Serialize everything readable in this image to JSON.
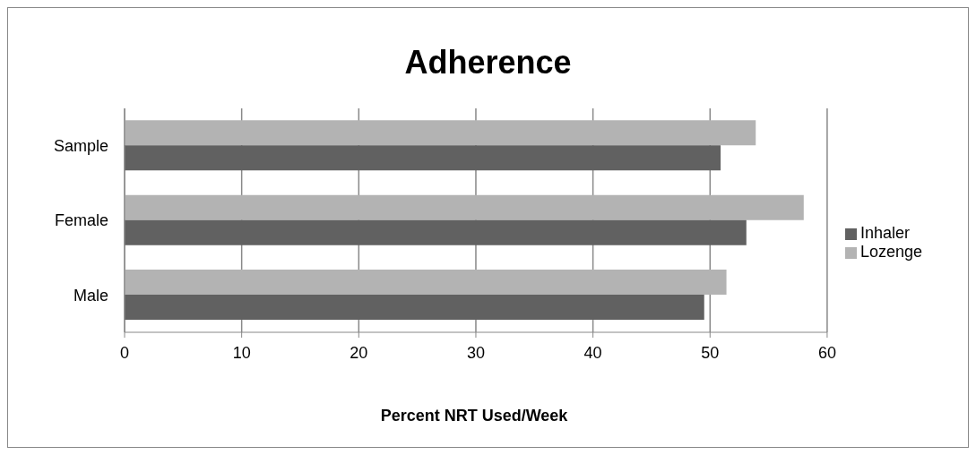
{
  "chart_data": {
    "type": "bar",
    "orientation": "horizontal",
    "title": "Adherence",
    "xlabel": "Percent NRT Used/Week",
    "categories": [
      "Sample",
      "Female",
      "Male"
    ],
    "series": [
      {
        "name": "Lozenge",
        "color": "#b3b3b3",
        "values": [
          53.9,
          58.0,
          51.4
        ]
      },
      {
        "name": "Inhaler",
        "color": "#616161",
        "values": [
          50.9,
          53.1,
          49.5
        ]
      }
    ],
    "xlim": [
      0,
      60
    ],
    "xticks": [
      0,
      10,
      20,
      30,
      40,
      50,
      60
    ],
    "grid": "x",
    "legend": "right"
  }
}
